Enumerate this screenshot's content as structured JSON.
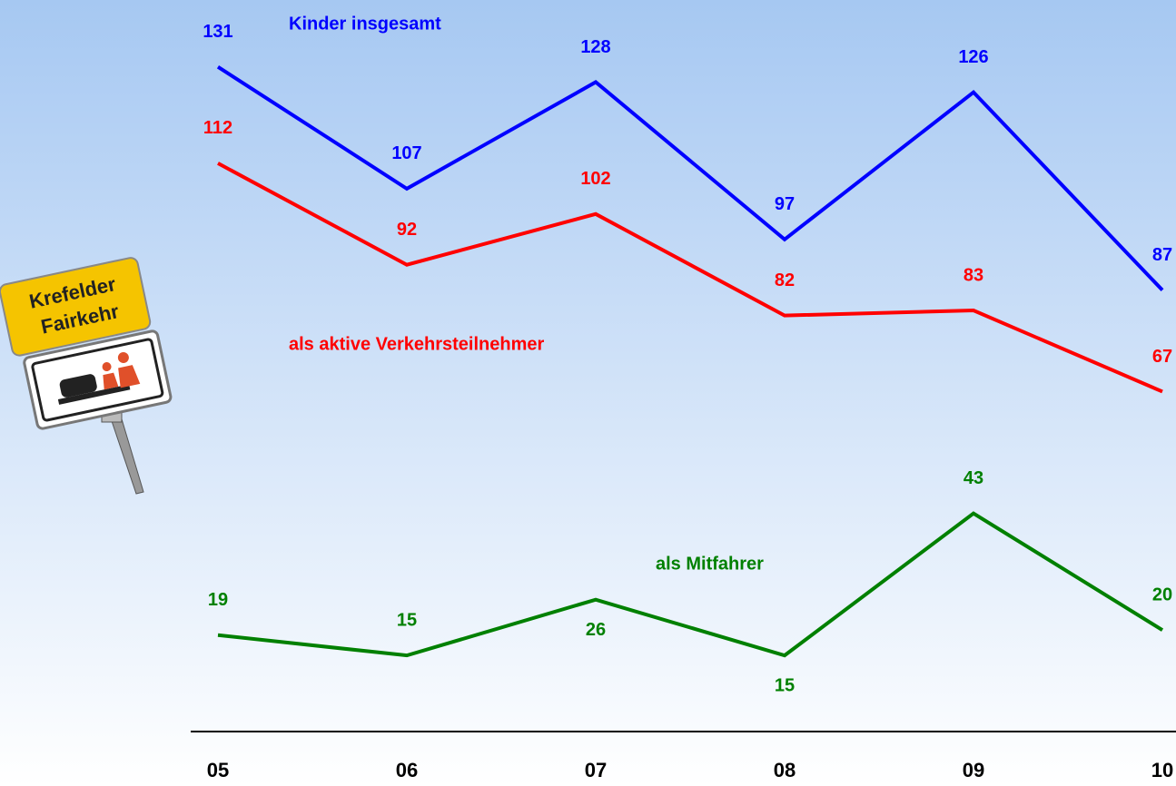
{
  "chart_data": {
    "type": "line",
    "categories": [
      "05",
      "06",
      "07",
      "08",
      "09",
      "10"
    ],
    "series": [
      {
        "name": "Kinder insgesamt",
        "color": "#0000ff",
        "values": [
          131,
          107,
          128,
          97,
          126,
          87
        ]
      },
      {
        "name": "als aktive Verkehrsteilnehmer",
        "color": "#ff0000",
        "values": [
          112,
          92,
          102,
          82,
          83,
          67
        ]
      },
      {
        "name": "als Mitfahrer",
        "color": "#008000",
        "values": [
          19,
          15,
          26,
          15,
          43,
          20
        ]
      }
    ]
  },
  "sign": {
    "line1": "Krefelder",
    "line2": "Fairkehr"
  }
}
